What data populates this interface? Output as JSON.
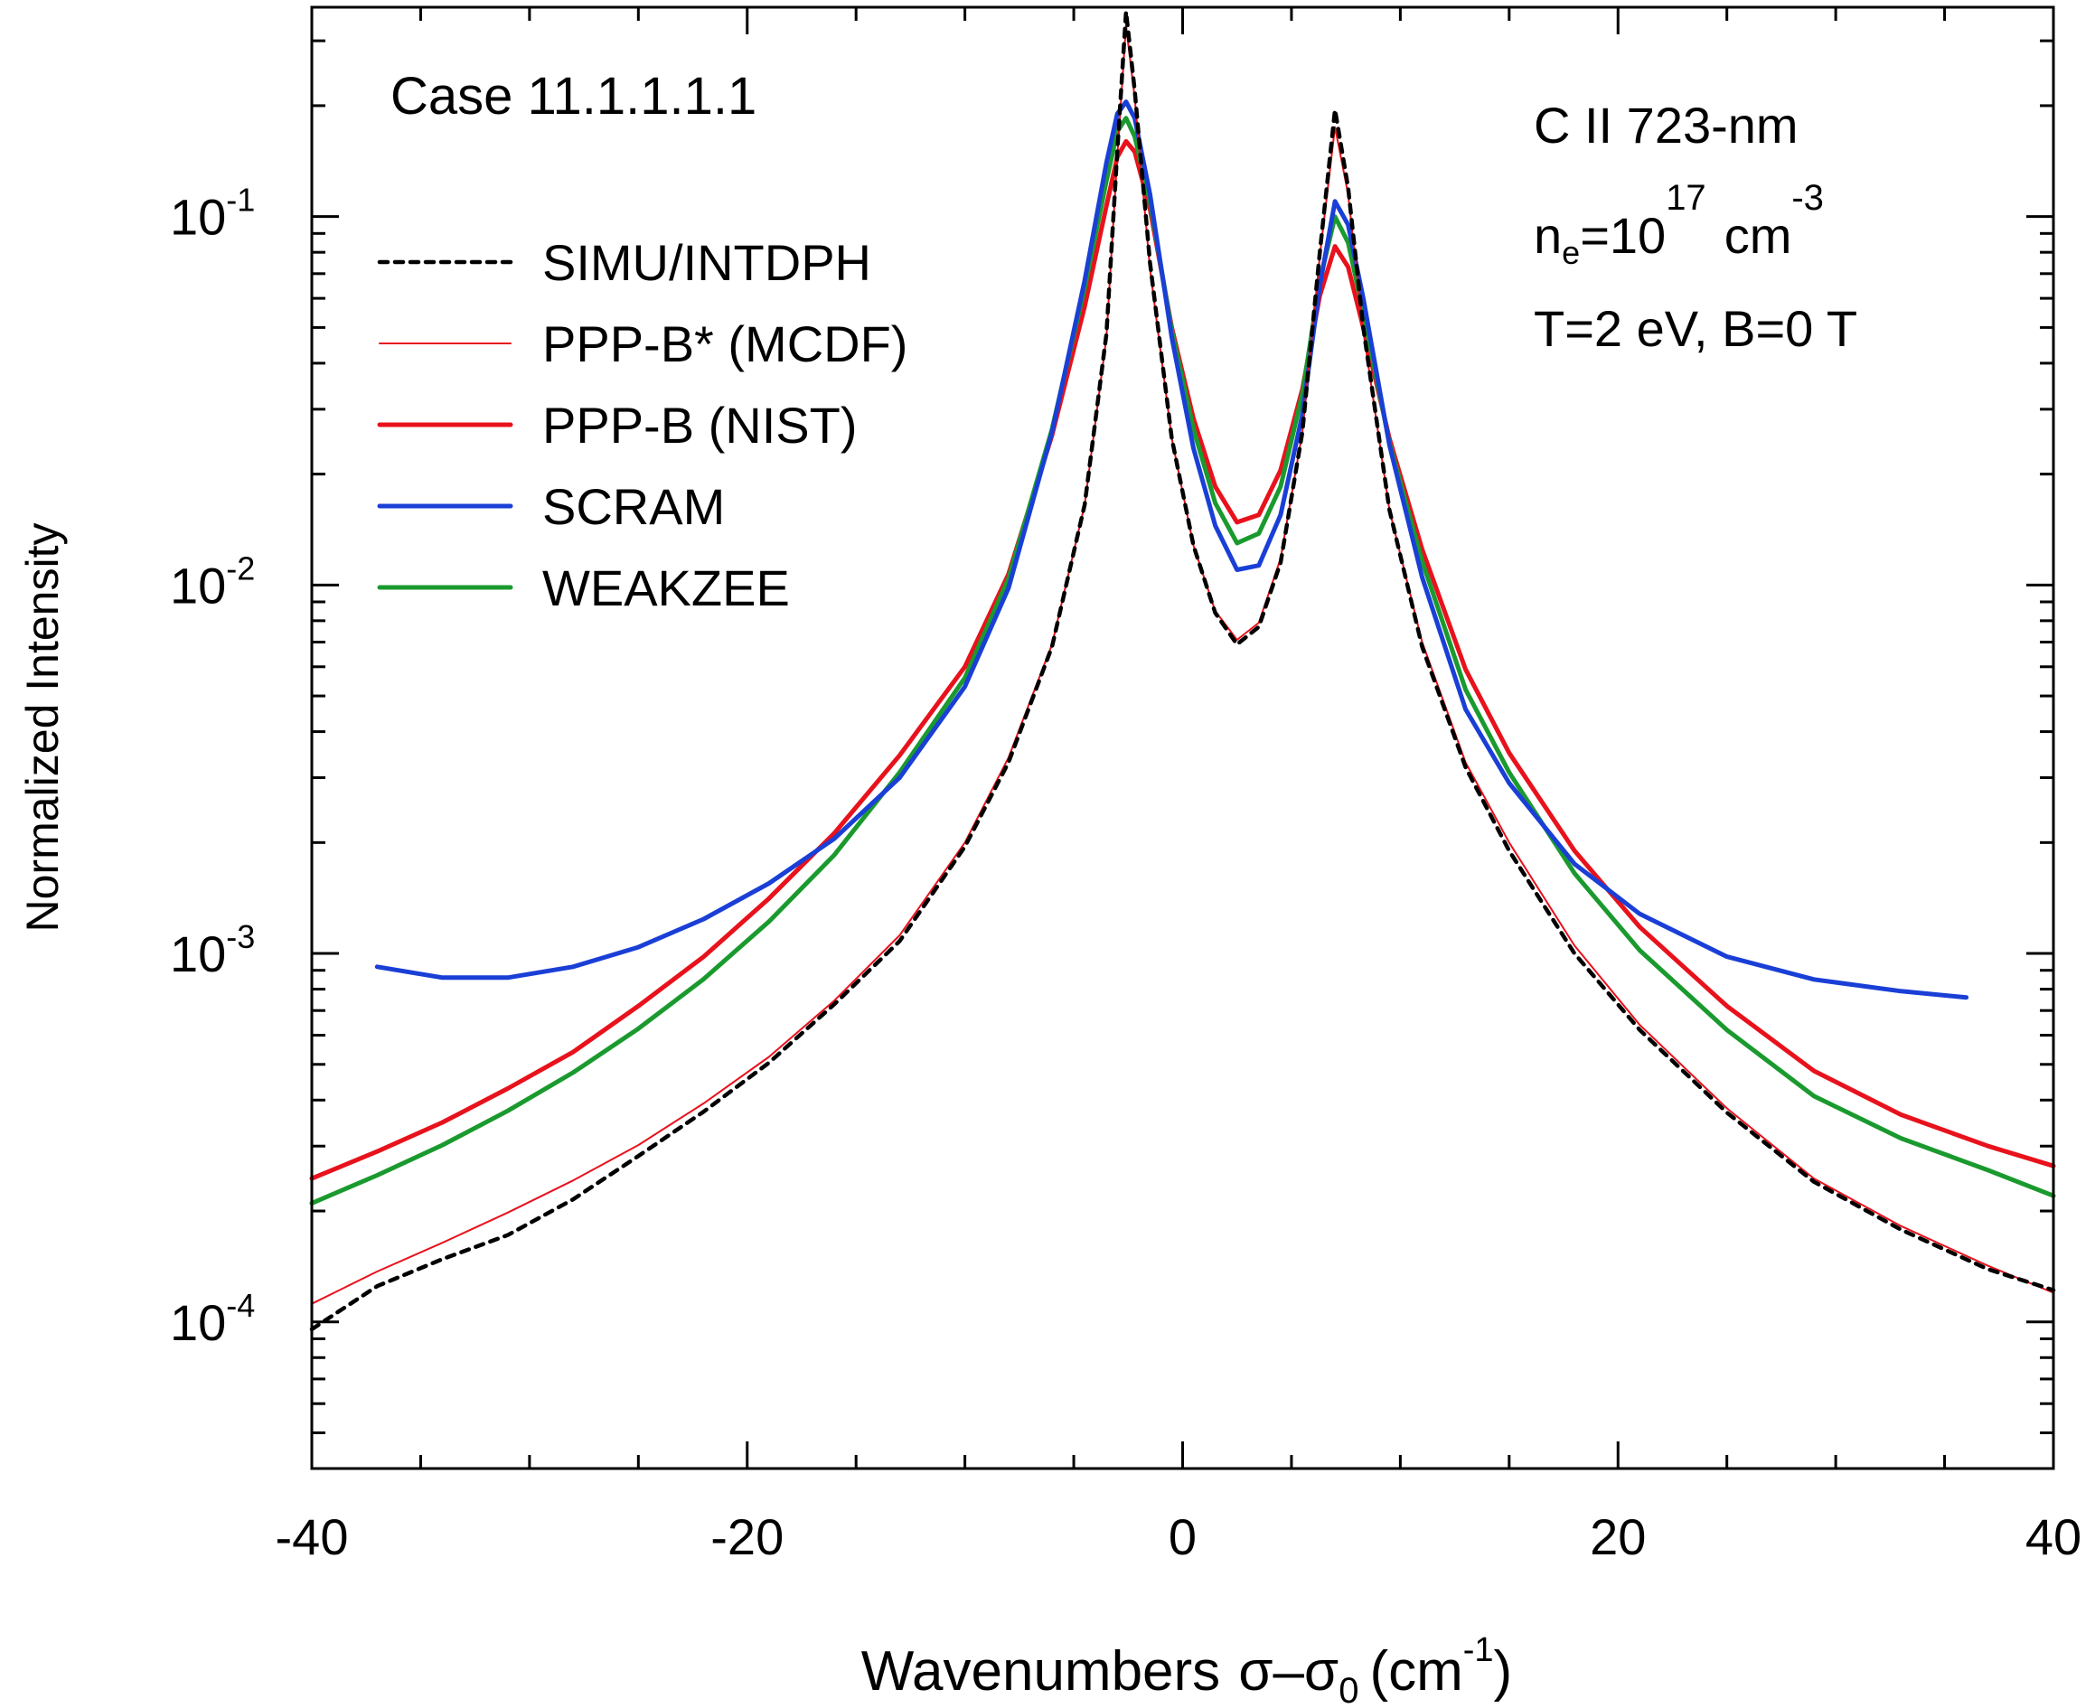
{
  "chart_data": {
    "type": "line",
    "xlabel_main": "Wavenumbers",
    "xlabel_symbol": "σ–σ",
    "xlabel_symbol_sub": "0",
    "xlabel_unit_open": "(cm",
    "xlabel_unit_sup": "-1",
    "xlabel_unit_close": ")",
    "ylabel": "Normalized Intensity",
    "xlim": [
      -40,
      40
    ],
    "ylim": [
      4e-05,
      0.37
    ],
    "yscale": "log",
    "x_ticks": [
      "-40",
      "-20",
      "0",
      "20",
      "40"
    ],
    "y_ticks": [
      {
        "base": "10",
        "exp": "-4",
        "value": 0.0001
      },
      {
        "base": "10",
        "exp": "-3",
        "value": 0.001
      },
      {
        "base": "10",
        "exp": "-2",
        "value": 0.01
      },
      {
        "base": "10",
        "exp": "-1",
        "value": 0.1
      }
    ],
    "annotations": {
      "case": "Case 11.1.1.1.1",
      "line_name": "C II 723-nm",
      "density_prefix": "n",
      "density_sub": "e",
      "density_eq": "=10",
      "density_exp": "17",
      "density_unit": "cm",
      "density_unit_exp": "-3",
      "conditions": "T=2 eV, B=0 T"
    },
    "legend_position": "top-left",
    "series": [
      {
        "name": "SIMU/INTDPH",
        "color": "#000000",
        "style": "dotted",
        "x": [
          -40,
          -37,
          -34,
          -31,
          -28,
          -25,
          -22,
          -19,
          -16,
          -13,
          -10,
          -8,
          -6,
          -4.5,
          -3.5,
          -3,
          -2.6,
          -2.2,
          -1.5,
          -0.5,
          0.5,
          1.5,
          2.5,
          3.5,
          4.5,
          5.5,
          6.3,
          7,
          7.6,
          8.3,
          9.5,
          11,
          13,
          15,
          18,
          21,
          25,
          29,
          33,
          37,
          40
        ],
        "y": [
          9.55e-05,
          0.000125,
          0.000148,
          0.000172,
          0.000215,
          0.000282,
          0.000372,
          0.000505,
          0.000728,
          0.00108,
          0.00195,
          0.0033,
          0.0068,
          0.0165,
          0.048,
          0.15,
          0.36,
          0.22,
          0.075,
          0.025,
          0.0128,
          0.0084,
          0.0069,
          0.0077,
          0.0115,
          0.026,
          0.08,
          0.195,
          0.12,
          0.05,
          0.016,
          0.0068,
          0.0032,
          0.0019,
          0.001,
          0.00062,
          0.00037,
          0.00024,
          0.000178,
          0.000139,
          0.000122
        ]
      },
      {
        "name": "PPP-B* (MCDF)",
        "color": "#e8121c",
        "style": "thin",
        "x": [
          -40,
          -37,
          -34,
          -31,
          -28,
          -25,
          -22,
          -19,
          -16,
          -13,
          -10,
          -8,
          -6,
          -4.5,
          -3.5,
          -3,
          -2.6,
          -2.2,
          -1.5,
          -0.5,
          0.5,
          1.5,
          2.5,
          3.5,
          4.5,
          5.5,
          6.3,
          7,
          7.6,
          8.3,
          9.5,
          11,
          13,
          15,
          18,
          21,
          25,
          29,
          33,
          37,
          40
        ],
        "y": [
          0.000112,
          0.000137,
          0.000164,
          0.000198,
          0.000242,
          0.000302,
          0.000392,
          0.000524,
          0.000745,
          0.00112,
          0.002,
          0.0034,
          0.0069,
          0.0165,
          0.047,
          0.145,
          0.33,
          0.21,
          0.072,
          0.025,
          0.0128,
          0.0085,
          0.0071,
          0.0079,
          0.0118,
          0.026,
          0.078,
          0.175,
          0.115,
          0.049,
          0.016,
          0.007,
          0.0033,
          0.002,
          0.00105,
          0.00064,
          0.00038,
          0.000245,
          0.000182,
          0.000142,
          0.00012
        ]
      },
      {
        "name": "PPP-B (NIST)",
        "color": "#e8121c",
        "style": "thick",
        "x": [
          -40,
          -37,
          -34,
          -31,
          -28,
          -25,
          -22,
          -19,
          -16,
          -13,
          -10,
          -8,
          -6,
          -4.5,
          -3.5,
          -3,
          -2.6,
          -2.2,
          -1.5,
          -0.5,
          0.5,
          1.5,
          2.5,
          3.5,
          4.5,
          5.5,
          6.3,
          7,
          7.6,
          8.3,
          9.5,
          11,
          13,
          15,
          18,
          21,
          25,
          29,
          33,
          37,
          40
        ],
        "y": [
          0.000245,
          0.00029,
          0.000348,
          0.00043,
          0.00054,
          0.00072,
          0.00098,
          0.00141,
          0.00212,
          0.00345,
          0.006,
          0.0107,
          0.0255,
          0.057,
          0.107,
          0.145,
          0.16,
          0.15,
          0.105,
          0.05,
          0.0283,
          0.0185,
          0.0148,
          0.0155,
          0.0205,
          0.034,
          0.061,
          0.083,
          0.073,
          0.05,
          0.025,
          0.0125,
          0.0059,
          0.0035,
          0.0019,
          0.00118,
          0.00072,
          0.00048,
          0.000365,
          0.0003,
          0.000265
        ]
      },
      {
        "name": "SCRAM",
        "color": "#1a3fd6",
        "style": "thick",
        "x": [
          -37,
          -34,
          -31,
          -28,
          -25,
          -22,
          -19,
          -16,
          -13,
          -10,
          -8,
          -6,
          -4.5,
          -3.5,
          -3,
          -2.6,
          -2.2,
          -1.5,
          -0.5,
          0.5,
          1.5,
          2.5,
          3.5,
          4.5,
          5.5,
          6.3,
          7,
          7.6,
          8.3,
          9.5,
          11,
          13,
          15,
          18,
          21,
          25,
          29,
          33,
          36
        ],
        "y": [
          0.00092,
          0.00086,
          0.00086,
          0.00092,
          0.00104,
          0.00124,
          0.00155,
          0.00205,
          0.003,
          0.0053,
          0.0098,
          0.026,
          0.067,
          0.14,
          0.19,
          0.205,
          0.185,
          0.115,
          0.047,
          0.0235,
          0.0145,
          0.011,
          0.0113,
          0.0155,
          0.029,
          0.065,
          0.11,
          0.095,
          0.06,
          0.024,
          0.0105,
          0.0046,
          0.0029,
          0.00175,
          0.00128,
          0.00098,
          0.00085,
          0.00079,
          0.00076
        ]
      },
      {
        "name": "WEAKZEE",
        "color": "#1a9a2e",
        "style": "thick",
        "x": [
          -40,
          -37,
          -34,
          -31,
          -28,
          -25,
          -22,
          -19,
          -16,
          -13,
          -10,
          -8,
          -6,
          -4.5,
          -3.5,
          -3,
          -2.6,
          -2.2,
          -1.5,
          -0.5,
          0.5,
          1.5,
          2.5,
          3.5,
          4.5,
          5.5,
          6.3,
          7,
          7.6,
          8.3,
          9.5,
          11,
          13,
          15,
          18,
          21,
          25,
          29,
          33,
          37,
          40
        ],
        "y": [
          0.00021,
          0.00025,
          0.000302,
          0.000374,
          0.000475,
          0.000625,
          0.000852,
          0.00122,
          0.00185,
          0.0031,
          0.0056,
          0.0104,
          0.0265,
          0.064,
          0.125,
          0.17,
          0.185,
          0.165,
          0.11,
          0.049,
          0.0265,
          0.0167,
          0.013,
          0.0138,
          0.0185,
          0.033,
          0.067,
          0.1,
          0.085,
          0.055,
          0.0243,
          0.0116,
          0.0052,
          0.0031,
          0.00165,
          0.00102,
          0.00062,
          0.00041,
          0.000315,
          0.000258,
          0.00022
        ]
      }
    ]
  }
}
